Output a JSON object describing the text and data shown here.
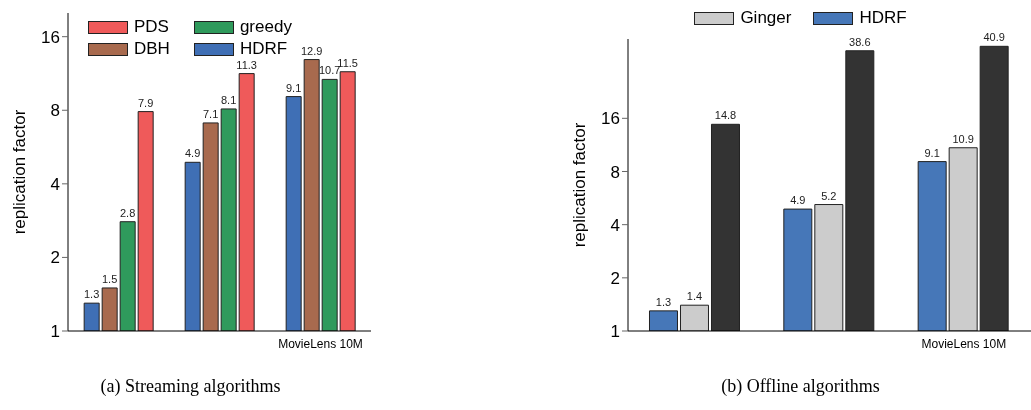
{
  "chart_data": [
    {
      "type": "bar",
      "title": "(a) Streaming algorithms",
      "ylabel": "replication factor",
      "categories": [
        null,
        null,
        "MovieLens 10M"
      ],
      "log": "y",
      "ylim": [
        1,
        20
      ],
      "yticks": [
        1,
        2,
        4,
        8,
        16
      ],
      "data_labels": true,
      "legend": "top left",
      "grid": false,
      "series": [
        {
          "name": "HDRF",
          "color": "#3f6fb5",
          "values": [
            1.3,
            4.9,
            9.1
          ]
        },
        {
          "name": "DBH",
          "color": "#a86a4e",
          "values": [
            1.5,
            7.1,
            12.9
          ]
        },
        {
          "name": "greedy",
          "color": "#2f9a5c",
          "values": [
            2.8,
            8.1,
            10.7
          ]
        },
        {
          "name": "PDS",
          "color": "#ef5a5a",
          "values": [
            7.9,
            11.3,
            11.5
          ]
        }
      ]
    },
    {
      "type": "bar",
      "title": "(b) Offline algorithms",
      "ylabel": "replication factor",
      "categories": [
        null,
        null,
        "MovieLens 10M"
      ],
      "log": "y",
      "ylim": [
        1,
        45
      ],
      "yticks": [
        1,
        2,
        4,
        8,
        16
      ],
      "data_labels": true,
      "legend": "top",
      "grid": false,
      "series": [
        {
          "name": "HDRF",
          "color": "#4677b8",
          "values": [
            1.3,
            4.9,
            9.1
          ]
        },
        {
          "name": "Ginger",
          "color": "#cccccc",
          "values": [
            1.4,
            5.2,
            10.9
          ]
        },
        {
          "color": "#333333",
          "values": [
            14.8,
            38.6,
            40.9
          ]
        }
      ]
    }
  ]
}
